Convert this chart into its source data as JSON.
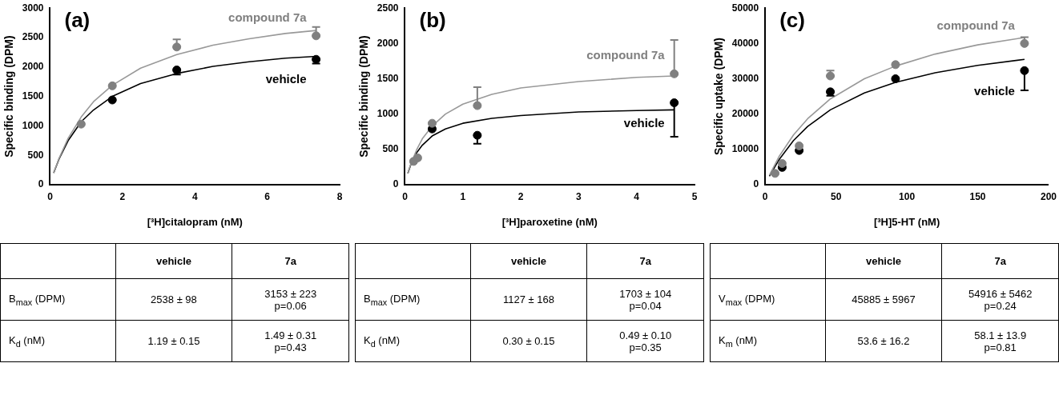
{
  "chart_data": [
    {
      "type": "scatter",
      "xlabel": "[³H]citalopram (nM)",
      "ylabel": "Specific binding (DPM)",
      "xlim": [
        0,
        8
      ],
      "xticks": [
        0,
        2,
        4,
        6,
        8
      ],
      "ylim": [
        0,
        3000
      ],
      "yticks": [
        0,
        500,
        1000,
        1500,
        2000,
        2500,
        3000
      ],
      "annotations": [
        "(a)",
        "vehicle",
        "7a",
        "B$_{max}$ (DPM)",
        "2538 ± 98",
        "3153 ± 223\np=0.06",
        "K$_{d}$ (nM)",
        "1.19 ± 0.15",
        "1.49 ± 0.31\np=0.43"
      ],
      "series": [
        {
          "name": "compound 7a",
          "color": "#808080",
          "marker": "circle",
          "x": [
            0.86,
            1.72,
            3.5,
            7.35
          ],
          "values": [
            1030,
            1680,
            2340,
            2530
          ],
          "errors": [
            null,
            null,
            [
              2340,
              2470
            ],
            [
              2530,
              2680
            ]
          ]
        },
        {
          "name": "vehicle",
          "color": "#000000",
          "marker": "circle",
          "x": [
            1.72,
            3.5,
            7.35
          ],
          "values": [
            1440,
            1950,
            2130
          ],
          "errors": [
            null,
            [
              1870,
              1950
            ],
            [
              2060,
              2130
            ]
          ]
        },
        {
          "type": "line",
          "color": "#999999",
          "x": [
            0.1,
            0.25,
            0.5,
            0.86,
            1.2,
            1.72,
            2.5,
            3.5,
            4.5,
            5.5,
            6.5,
            7.35
          ],
          "values": [
            200,
            450,
            790,
            1150,
            1410,
            1690,
            1980,
            2210,
            2370,
            2480,
            2570,
            2620
          ]
        },
        {
          "type": "line",
          "color": "#000000",
          "x": [
            0.1,
            0.25,
            0.5,
            0.86,
            1.2,
            1.72,
            2.5,
            3.5,
            4.5,
            5.5,
            6.5,
            7.35
          ],
          "values": [
            200,
            440,
            750,
            1070,
            1270,
            1500,
            1720,
            1890,
            2010,
            2090,
            2150,
            2180
          ]
        }
      ]
    },
    {
      "type": "scatter",
      "xlabel": "[³H]paroxetine (nM)",
      "ylabel": "Specific binding (DPM)",
      "xlim": [
        0,
        5
      ],
      "xticks": [
        0,
        1,
        2,
        3,
        4,
        5
      ],
      "ylim": [
        0,
        2500
      ],
      "yticks": [
        0,
        500,
        1000,
        1500,
        2000,
        2500
      ],
      "annotations": [
        "(b)",
        "vehicle",
        "7a",
        "B$_{max}$ (DPM)",
        "1127 ± 168",
        "1703 ± 104\np=0.04",
        "K$_{d}$ (nM)",
        "0.30 ± 0.15",
        "0.49 ± 0.10\np=0.35"
      ],
      "series": [
        {
          "name": "compound 7a",
          "color": "#808080",
          "marker": "circle",
          "x": [
            0.15,
            0.22,
            0.47,
            1.25,
            4.65
          ],
          "values": [
            330,
            380,
            870,
            1120,
            1570
          ],
          "errors": [
            null,
            null,
            null,
            [
              1120,
              1380
            ],
            [
              1570,
              2050
            ]
          ]
        },
        {
          "name": "vehicle",
          "color": "#000000",
          "marker": "circle",
          "x": [
            0.47,
            1.25,
            4.65
          ],
          "values": [
            790,
            700,
            1160
          ],
          "errors": [
            null,
            [
              580,
              700
            ],
            [
              680,
              1160
            ]
          ]
        },
        {
          "type": "line",
          "color": "#999999",
          "x": [
            0.05,
            0.1,
            0.2,
            0.3,
            0.47,
            0.7,
            1,
            1.5,
            2,
            3,
            4,
            4.65
          ],
          "values": [
            160,
            290,
            490,
            650,
            830,
            1000,
            1140,
            1280,
            1370,
            1460,
            1520,
            1540
          ]
        },
        {
          "type": "line",
          "color": "#000000",
          "x": [
            0.05,
            0.1,
            0.2,
            0.3,
            0.47,
            0.7,
            1,
            1.5,
            2,
            3,
            4,
            4.65
          ],
          "values": [
            160,
            280,
            450,
            560,
            690,
            790,
            870,
            940,
            980,
            1030,
            1050,
            1060
          ]
        }
      ]
    },
    {
      "type": "scatter",
      "xlabel": "[³H]5-HT (nM)",
      "ylabel": "Specific uptake (DPM)",
      "xlim": [
        0,
        200
      ],
      "xticks": [
        0,
        50,
        100,
        150,
        200
      ],
      "ylim": [
        0,
        50000
      ],
      "yticks": [
        0,
        10000,
        20000,
        30000,
        40000,
        50000
      ],
      "annotations": [
        "(c)",
        "vehicle",
        "7a",
        "V$_{max}$ (DPM)",
        "45885 ± 5967",
        "54916 ± 5462\np=0.24",
        "K$_{m}$ (nM)",
        "53.6 ± 16.2",
        "58.1 ± 13.9\np=0.81"
      ],
      "series": [
        {
          "name": "compound 7a",
          "color": "#808080",
          "marker": "circle",
          "x": [
            7,
            12,
            24,
            46,
            92,
            183
          ],
          "values": [
            3200,
            6000,
            11000,
            30800,
            34000,
            40000
          ],
          "errors": [
            null,
            null,
            null,
            [
              30800,
              32300
            ],
            null,
            [
              40000,
              41800
            ]
          ]
        },
        {
          "name": "vehicle",
          "color": "#000000",
          "marker": "circle",
          "x": [
            12,
            24,
            46,
            92,
            183
          ],
          "values": [
            4900,
            9700,
            26300,
            30000,
            32300
          ],
          "errors": [
            null,
            null,
            [
              25200,
              26300
            ],
            null,
            [
              26700,
              32300
            ]
          ]
        },
        {
          "type": "line",
          "color": "#999999",
          "x": [
            3,
            10,
            20,
            30,
            46,
            70,
            92,
            120,
            150,
            183
          ],
          "values": [
            2700,
            8100,
            14100,
            18700,
            24300,
            30000,
            33600,
            37000,
            39600,
            41700
          ]
        },
        {
          "type": "line",
          "color": "#000000",
          "x": [
            3,
            10,
            20,
            30,
            46,
            70,
            92,
            120,
            150,
            183
          ],
          "values": [
            2400,
            7200,
            12500,
            16500,
            21200,
            26000,
            29000,
            31700,
            33800,
            35500
          ]
        }
      ]
    }
  ]
}
